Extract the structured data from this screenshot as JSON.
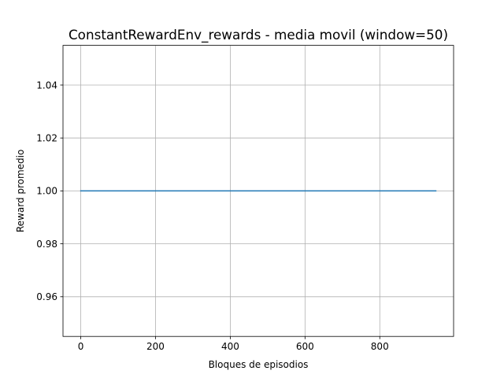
{
  "chart_data": {
    "type": "line",
    "title": "ConstantRewardEnv_rewards - media movil (window=50)",
    "xlabel": "Bloques de episodios",
    "ylabel": "Reward promedio",
    "xlim": [
      -47.5,
      997.5
    ],
    "ylim": [
      0.945,
      1.055
    ],
    "xticks": [
      0,
      200,
      400,
      600,
      800
    ],
    "xtick_labels": [
      "0",
      "200",
      "400",
      "600",
      "800"
    ],
    "yticks": [
      0.96,
      0.98,
      1.0,
      1.02,
      1.04
    ],
    "ytick_labels": [
      "0.96",
      "0.98",
      "1.00",
      "1.02",
      "1.04"
    ],
    "grid": true,
    "series": [
      {
        "color": "#1f77b4",
        "x": [
          0,
          950
        ],
        "y": [
          1.0,
          1.0
        ]
      }
    ]
  }
}
